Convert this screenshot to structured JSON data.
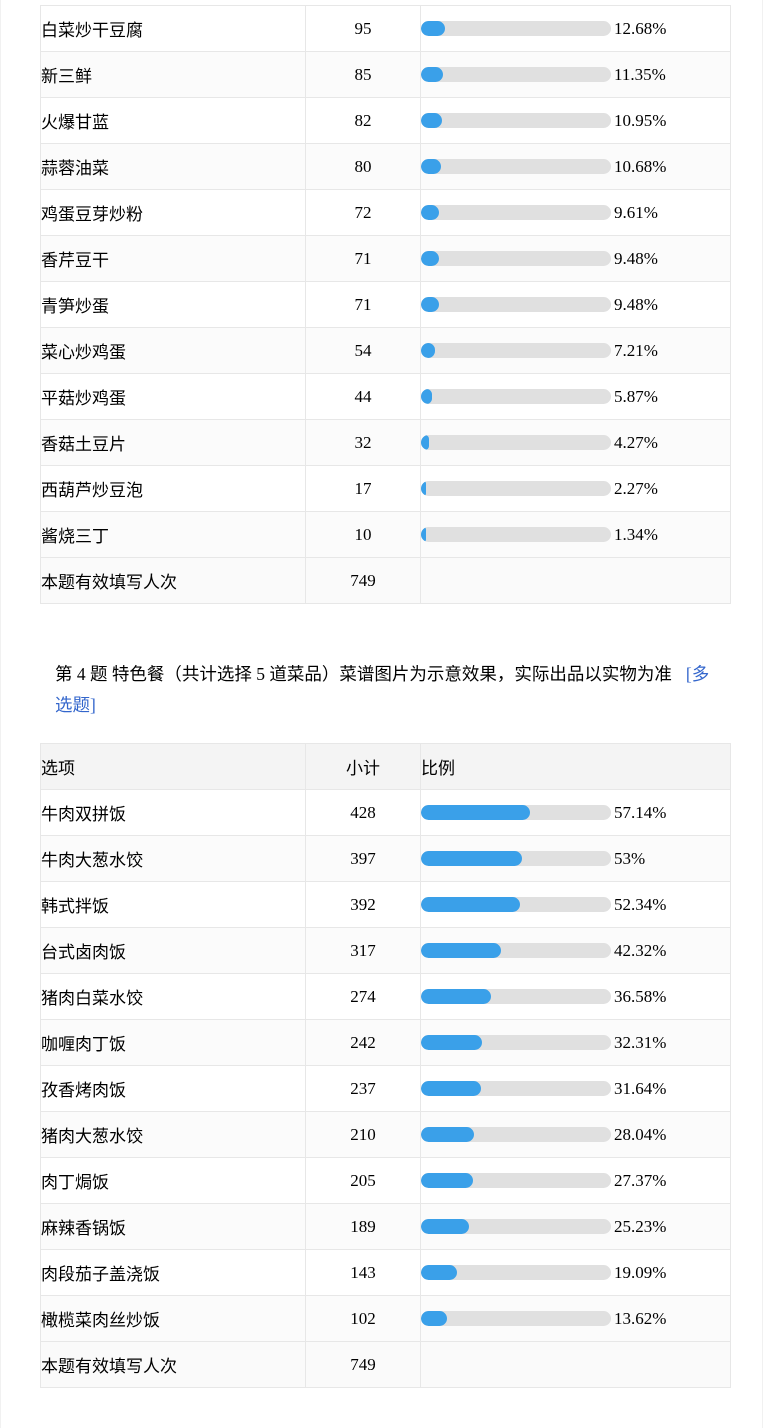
{
  "colors": {
    "bar_fill": "#3aa0e9",
    "bar_track": "#e0e0e0",
    "tag_blue": "#3366cc"
  },
  "table1": {
    "rows": [
      {
        "label": "白菜炒干豆腐",
        "count": "95",
        "percent": "12.68%",
        "value": 12.68
      },
      {
        "label": "新三鲜",
        "count": "85",
        "percent": "11.35%",
        "value": 11.35
      },
      {
        "label": "火爆甘蓝",
        "count": "82",
        "percent": "10.95%",
        "value": 10.95
      },
      {
        "label": "蒜蓉油菜",
        "count": "80",
        "percent": "10.68%",
        "value": 10.68
      },
      {
        "label": "鸡蛋豆芽炒粉",
        "count": "72",
        "percent": "9.61%",
        "value": 9.61
      },
      {
        "label": "香芹豆干",
        "count": "71",
        "percent": "9.48%",
        "value": 9.48
      },
      {
        "label": "青笋炒蛋",
        "count": "71",
        "percent": "9.48%",
        "value": 9.48
      },
      {
        "label": "菜心炒鸡蛋",
        "count": "54",
        "percent": "7.21%",
        "value": 7.21
      },
      {
        "label": "平菇炒鸡蛋",
        "count": "44",
        "percent": "5.87%",
        "value": 5.87
      },
      {
        "label": "香菇土豆片",
        "count": "32",
        "percent": "4.27%",
        "value": 4.27
      },
      {
        "label": "西葫芦炒豆泡",
        "count": "17",
        "percent": "2.27%",
        "value": 2.27
      },
      {
        "label": "酱烧三丁",
        "count": "10",
        "percent": "1.34%",
        "value": 1.34
      }
    ],
    "footer": {
      "label": "本题有效填写人次",
      "count": "749"
    }
  },
  "question": {
    "title": "第 4 题  特色餐（共计选择 5 道菜品）菜谱图片为示意效果，实际出品以实物为准",
    "tag": "[多选题]"
  },
  "table2": {
    "headers": {
      "option": "选项",
      "count": "小计",
      "ratio": "比例"
    },
    "rows": [
      {
        "label": "牛肉双拼饭",
        "count": "428",
        "percent": "57.14%",
        "value": 57.14
      },
      {
        "label": "牛肉大葱水饺",
        "count": "397",
        "percent": "53%",
        "value": 53
      },
      {
        "label": "韩式拌饭",
        "count": "392",
        "percent": "52.34%",
        "value": 52.34
      },
      {
        "label": "台式卤肉饭",
        "count": "317",
        "percent": "42.32%",
        "value": 42.32
      },
      {
        "label": "猪肉白菜水饺",
        "count": "274",
        "percent": "36.58%",
        "value": 36.58
      },
      {
        "label": "咖喱肉丁饭",
        "count": "242",
        "percent": "32.31%",
        "value": 32.31
      },
      {
        "label": "孜香烤肉饭",
        "count": "237",
        "percent": "31.64%",
        "value": 31.64
      },
      {
        "label": "猪肉大葱水饺",
        "count": "210",
        "percent": "28.04%",
        "value": 28.04
      },
      {
        "label": "肉丁焗饭",
        "count": "205",
        "percent": "27.37%",
        "value": 27.37
      },
      {
        "label": "麻辣香锅饭",
        "count": "189",
        "percent": "25.23%",
        "value": 25.23
      },
      {
        "label": "肉段茄子盖浇饭",
        "count": "143",
        "percent": "19.09%",
        "value": 19.09
      },
      {
        "label": "橄榄菜肉丝炒饭",
        "count": "102",
        "percent": "13.62%",
        "value": 13.62
      }
    ],
    "footer": {
      "label": "本题有效填写人次",
      "count": "749"
    }
  }
}
